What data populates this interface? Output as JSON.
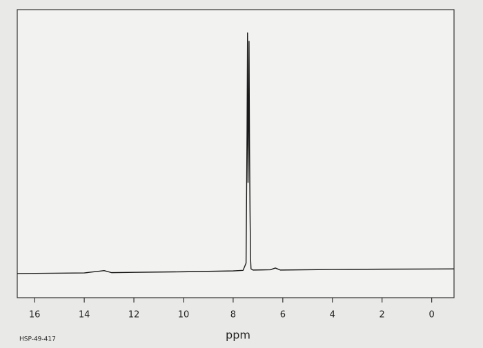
{
  "chart_data": {
    "type": "line",
    "x_label": "ppm",
    "annotation": "HSP-49-417",
    "x": [
      16.7,
      14,
      13.4,
      13.2,
      12.9,
      12,
      10,
      8,
      7.6,
      7.48,
      7.44,
      7.42,
      7.4,
      7.38,
      7.36,
      7.34,
      7.32,
      7.3,
      7.28,
      7.2,
      6.5,
      6.3,
      6.1,
      4,
      2,
      -0.9
    ],
    "series": [
      {
        "color": "#1a1a1a",
        "values": [
          8.4,
          8.6,
          9.2,
          9.4,
          8.7,
          8.8,
          9.0,
          9.3,
          9.5,
          12,
          58,
          91.9,
          40,
          60,
          89,
          52,
          30,
          14,
          10,
          9.6,
          9.7,
          10.3,
          9.6,
          9.8,
          9.9,
          10
        ]
      }
    ],
    "xlim": [
      16.7,
      -0.9
    ],
    "ylim": [
      0,
      100
    ],
    "xticks": [
      16,
      14,
      12,
      10,
      8,
      6,
      4,
      2,
      0
    ]
  }
}
